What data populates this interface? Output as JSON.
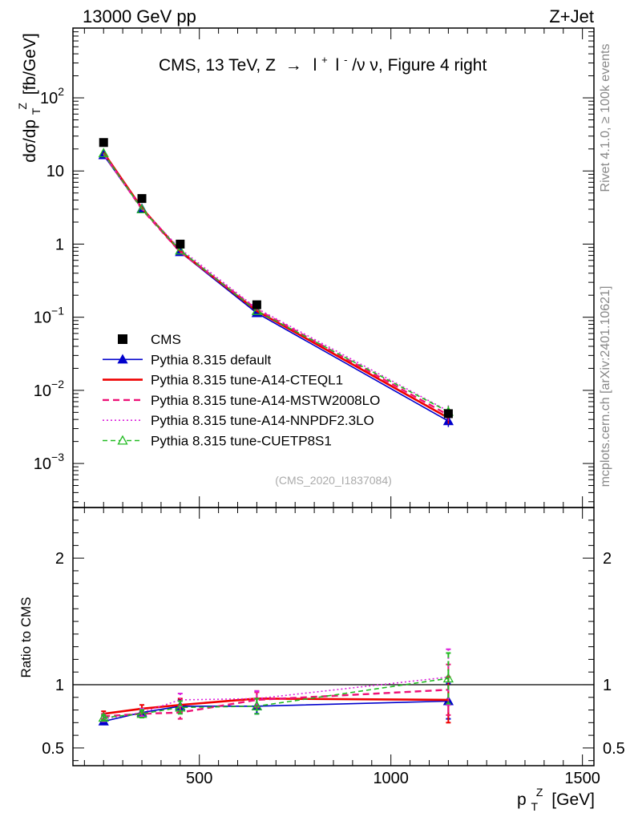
{
  "header": {
    "left": "13000 GeV pp",
    "right": "Z+Jet"
  },
  "side_labels": {
    "rivet": "Rivet 4.1.0, ≥ 100k events",
    "mcplots": "mcplots.cern.ch [arXiv:2401.10621]"
  },
  "chart_data": {
    "type": "line",
    "title": "CMS, 13 TeV, Z → l+ l-/ν ν, Figure 4 right",
    "title_parts": [
      "CMS, 13 TeV, Z",
      "→",
      "l",
      "+",
      "l",
      "-",
      "/ν ν, Figure 4 right"
    ],
    "watermark": "(CMS_2020_I1837084)",
    "xlabel": "p_T^Z [GeV]",
    "xlabel_parts": [
      "p",
      "T",
      "Z",
      "[GeV]"
    ],
    "ylabel": "dσ/dp_T^Z [fb/GeV]",
    "ylabel_parts": [
      "dσ/dp",
      "T",
      "Z",
      "[fb/GeV]"
    ],
    "ratio_ylabel": "Ratio to CMS",
    "x": [
      250,
      350,
      450,
      650,
      1150
    ],
    "xlim": [
      170,
      1530
    ],
    "xticks": [
      500,
      1000,
      1500
    ],
    "xtick_labels": [
      "500",
      "1000",
      "1500"
    ],
    "ylim_log": [
      0.00025,
      900
    ],
    "yticks_main": [
      {
        "v": 0.001,
        "base": "10",
        "exp": "−3"
      },
      {
        "v": 0.01,
        "base": "10",
        "exp": "−2"
      },
      {
        "v": 0.1,
        "base": "10",
        "exp": "−1"
      },
      {
        "v": 1,
        "base": "1",
        "exp": ""
      },
      {
        "v": 10,
        "base": "10",
        "exp": ""
      },
      {
        "v": 100,
        "base": "10",
        "exp": "2"
      }
    ],
    "ratio_ylim": [
      0.36,
      2.4
    ],
    "ratio_yticks": [
      0.5,
      1,
      2
    ],
    "ratio_ytick_labels": [
      "0.5",
      "1",
      "2"
    ],
    "data": {
      "name": "CMS",
      "values": [
        24.5,
        4.2,
        1.0,
        0.148,
        0.0048
      ]
    },
    "series": [
      {
        "name": "Pythia 8.315 default",
        "color": "#0000cc",
        "dash": "none",
        "marker": "filled-triangle",
        "values": [
          16.5,
          3.05,
          0.78,
          0.114,
          0.0038
        ],
        "ratio": [
          0.71,
          0.78,
          0.83,
          0.83,
          0.87
        ],
        "ratio_err": [
          0.02,
          0.03,
          0.05,
          0.06,
          0.14
        ]
      },
      {
        "name": "Pythia 8.315 tune-A14-CTEQL1",
        "color": "#ee0000",
        "dash": "none",
        "marker": "none",
        "values": [
          17.8,
          3.1,
          0.8,
          0.122,
          0.0042
        ],
        "ratio": [
          0.77,
          0.81,
          0.84,
          0.89,
          0.88
        ],
        "ratio_err": [
          0.02,
          0.03,
          0.05,
          0.06,
          0.18
        ]
      },
      {
        "name": "Pythia 8.315 tune-A14-MSTW2008LO",
        "color": "#ee1177",
        "dash": "8,5",
        "marker": "none",
        "values": [
          17.2,
          3.0,
          0.78,
          0.128,
          0.0046
        ],
        "ratio": [
          0.75,
          0.77,
          0.78,
          0.88,
          0.96
        ],
        "ratio_err": [
          0.02,
          0.03,
          0.05,
          0.06,
          0.2
        ]
      },
      {
        "name": "Pythia 8.315 tune-A14-NNPDF2.3LO",
        "color": "#dd22dd",
        "dash": "2,3",
        "marker": "none",
        "values": [
          17.0,
          3.05,
          0.86,
          0.132,
          0.0052
        ],
        "ratio": [
          0.73,
          0.78,
          0.88,
          0.89,
          1.06
        ],
        "ratio_err": [
          0.02,
          0.03,
          0.05,
          0.06,
          0.22
        ]
      },
      {
        "name": "Pythia 8.315 tune-CUETP8S1",
        "color": "#22bb22",
        "dash": "6,4",
        "marker": "open-triangle",
        "values": [
          17.5,
          3.0,
          0.82,
          0.122,
          0.0051
        ],
        "ratio": [
          0.74,
          0.77,
          0.82,
          0.83,
          1.05
        ],
        "ratio_err": [
          0.02,
          0.03,
          0.05,
          0.06,
          0.2
        ]
      }
    ]
  }
}
